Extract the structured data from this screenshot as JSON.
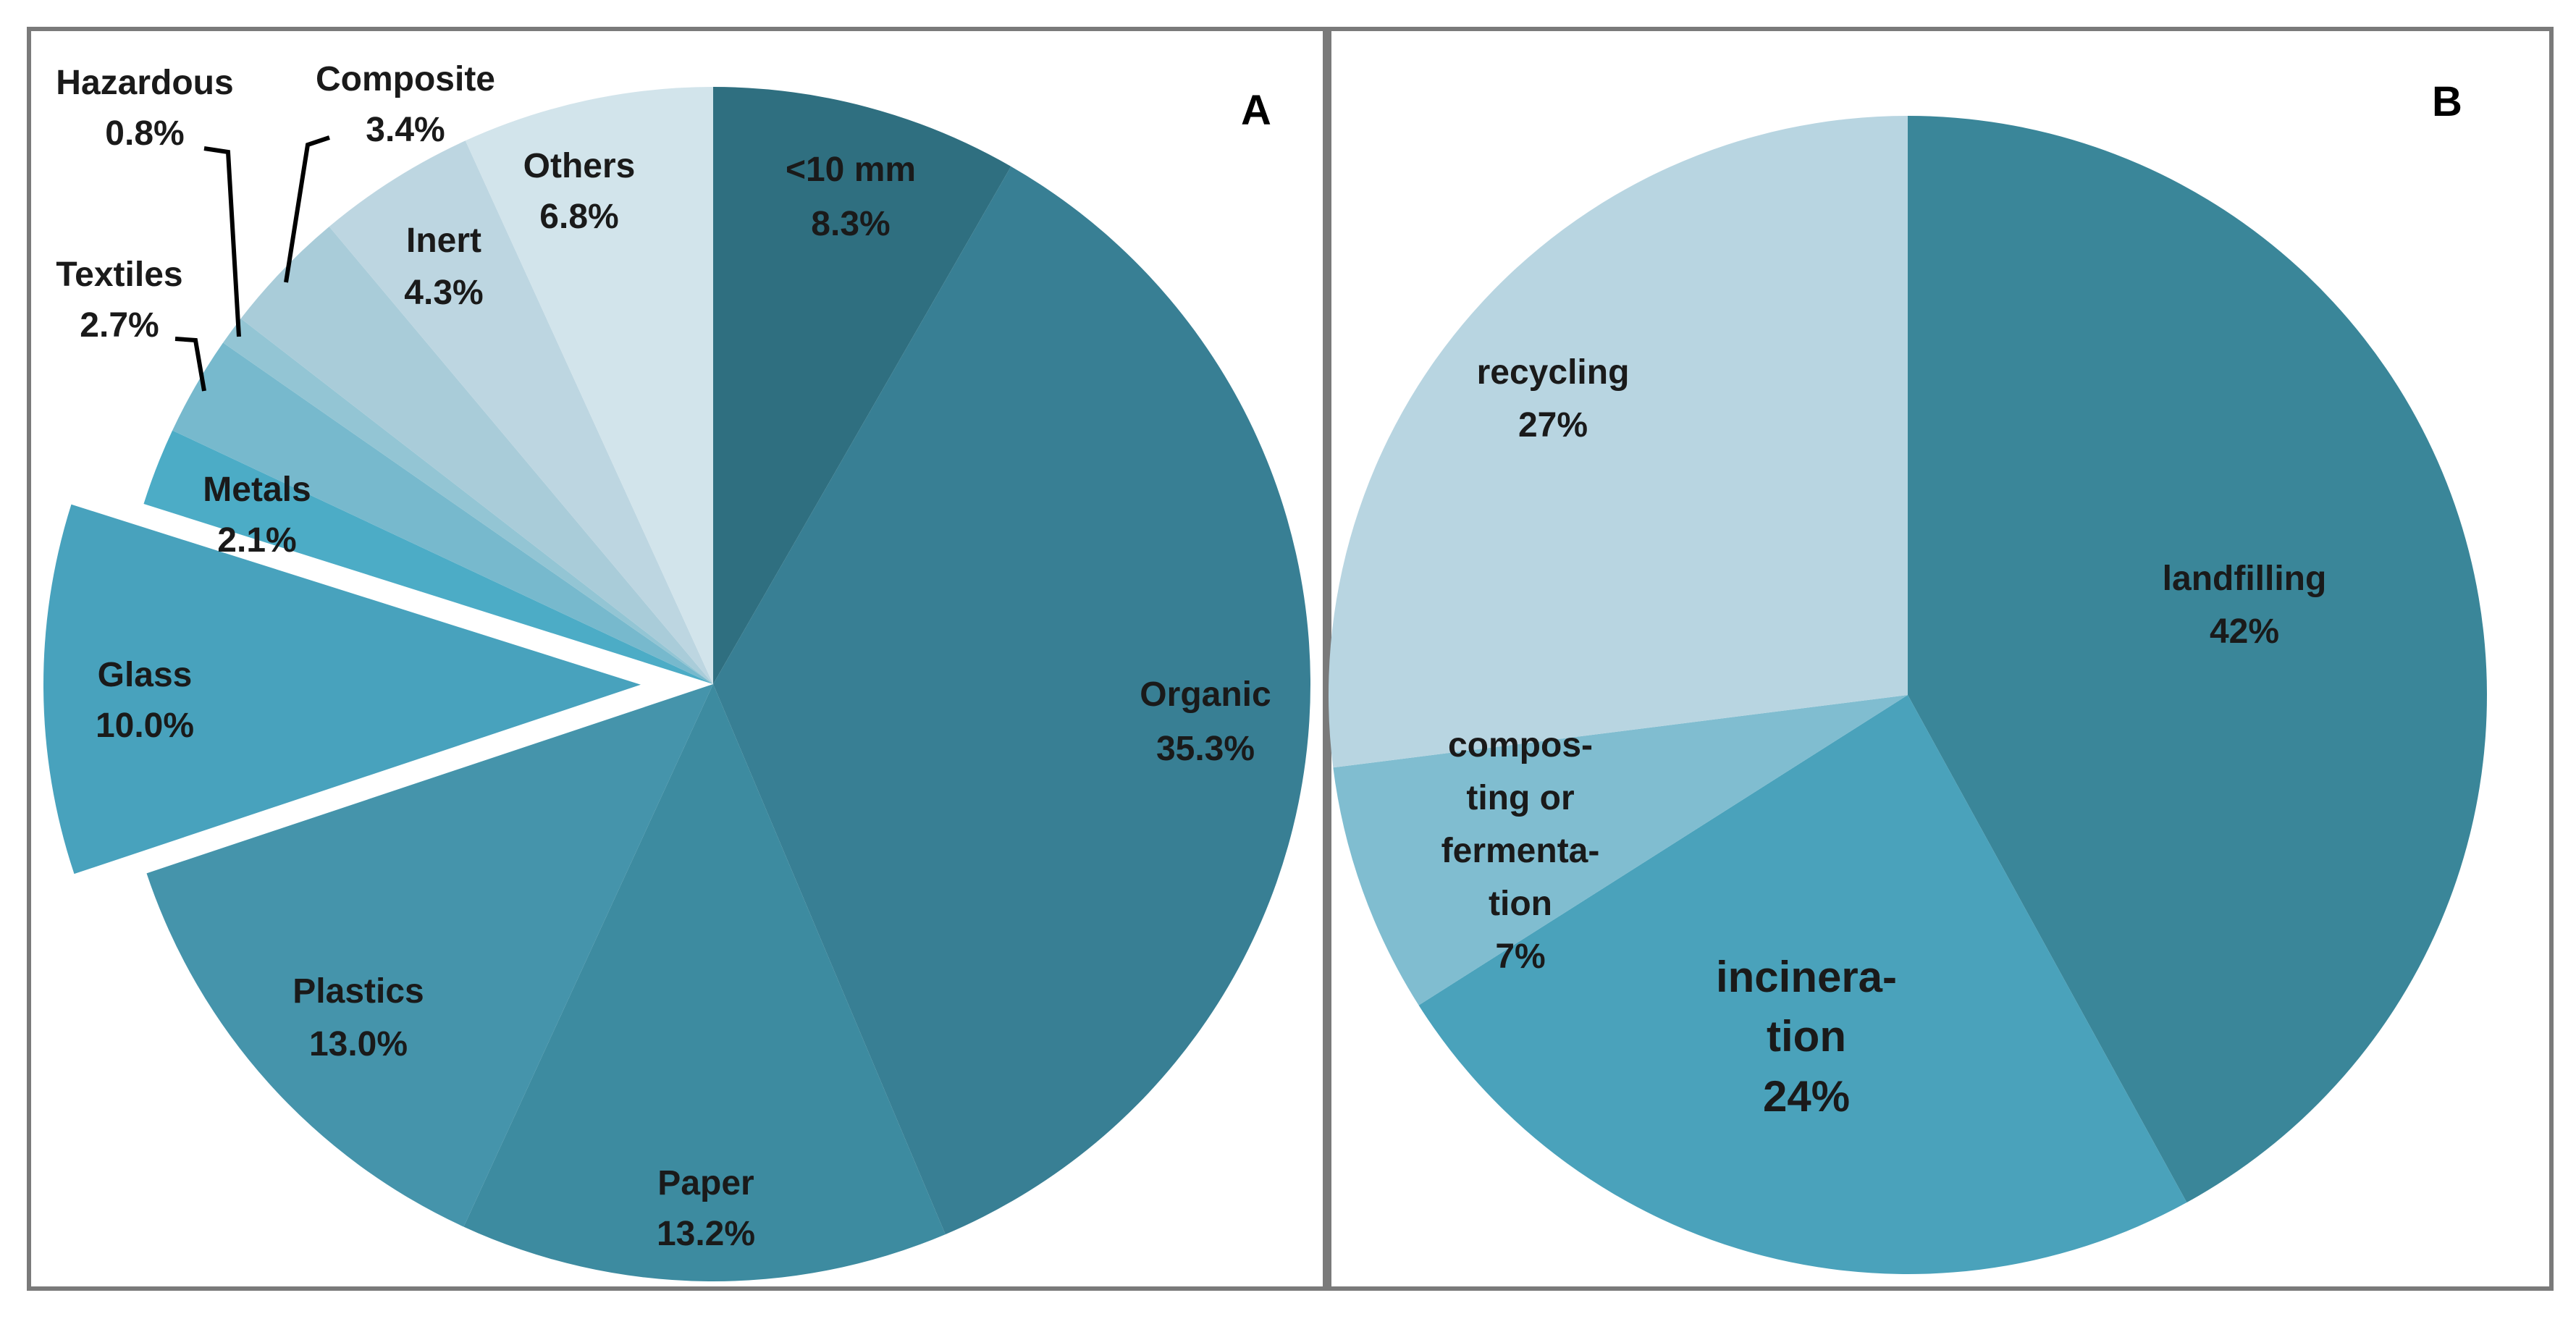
{
  "chart_data": [
    {
      "type": "pie",
      "title": "A",
      "start_angle_deg": 0,
      "direction": "clockwise",
      "slices": [
        {
          "name": "<10 mm",
          "value": 8.3,
          "label": "8.3%",
          "color": "#2f6f80"
        },
        {
          "name": "Organic",
          "value": 35.3,
          "label": "35.3%",
          "color": "#387f94"
        },
        {
          "name": "Paper",
          "value": 13.2,
          "label": "13.2%",
          "color": "#3d8ba0"
        },
        {
          "name": "Plastics",
          "value": 13.0,
          "label": "13.0%",
          "color": "#4594ab"
        },
        {
          "name": "Glass",
          "value": 10.0,
          "label": "10.0%",
          "color": "#48a2bd",
          "exploded": true
        },
        {
          "name": "Metals",
          "value": 2.1,
          "label": "2.1%",
          "color": "#4cacc6"
        },
        {
          "name": "Textiles",
          "value": 2.7,
          "label": "2.7%",
          "color": "#77b9cd"
        },
        {
          "name": "Hazardous",
          "value": 0.8,
          "label": "0.8%",
          "color": "#93c5d4"
        },
        {
          "name": "Composite",
          "value": 3.4,
          "label": "3.4%",
          "color": "#a9ccd9"
        },
        {
          "name": "Inert",
          "value": 4.3,
          "label": "4.3%",
          "color": "#bdd6e1"
        },
        {
          "name": "Others",
          "value": 6.8,
          "label": "6.8%",
          "color": "#d2e4eb"
        }
      ]
    },
    {
      "type": "pie",
      "title": "B",
      "start_angle_deg": 0,
      "direction": "clockwise",
      "slices": [
        {
          "name": "landfilling",
          "value": 42,
          "label": "42%",
          "color": "#3a8699"
        },
        {
          "name": "incinera-\ntion",
          "value": 24,
          "label": "24%",
          "color": "#4aa2bb"
        },
        {
          "name": "compos-\nting or\nfermenta-\ntion",
          "value": 7,
          "label": "7%",
          "color": "#80bdd0"
        },
        {
          "name": "recycling",
          "value": 27,
          "label": "27%",
          "color": "#b8d5e1"
        }
      ]
    }
  ]
}
